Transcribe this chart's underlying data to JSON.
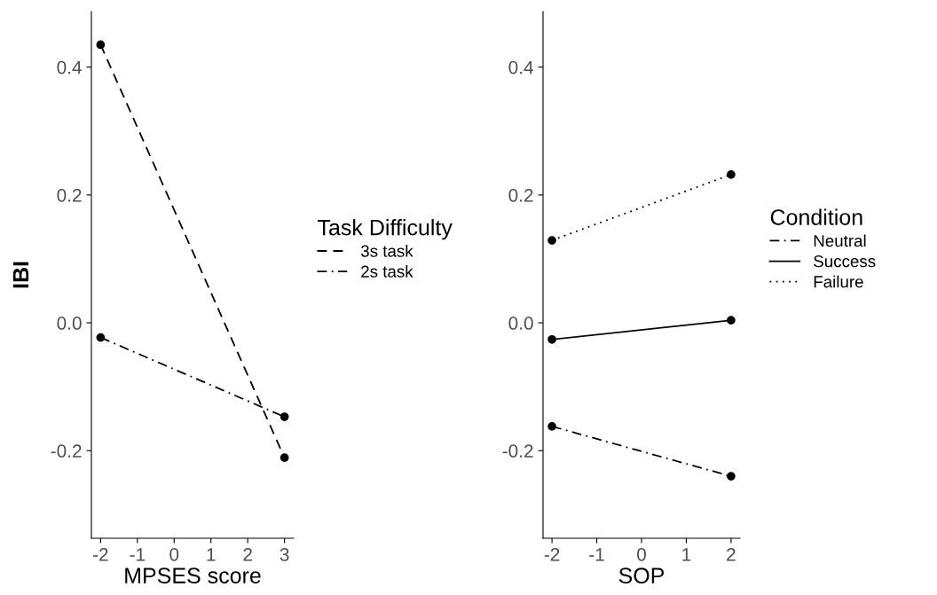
{
  "chart_data": [
    {
      "type": "line",
      "xlabel": "MPSES score",
      "ylabel": "IBI",
      "legend_title": "Task Difficulty",
      "legend": "right",
      "marker": "circle",
      "grid": false,
      "x": [
        -2,
        3
      ],
      "xlim": [
        -2.25,
        3.25
      ],
      "xticks": [
        -2,
        -1,
        0,
        1,
        2,
        3
      ],
      "ylim": [
        -0.337,
        0.487
      ],
      "yticks": [
        {
          "value": -0.2,
          "label": "-0.2"
        },
        {
          "value": 0.0,
          "label": "0.0"
        },
        {
          "value": 0.2,
          "label": "0.2"
        },
        {
          "value": 0.4,
          "label": "0.4"
        }
      ],
      "series": [
        {
          "name": "3s task",
          "color": "#000000",
          "line_style": "dashed",
          "values": [
            0.435,
            -0.211
          ]
        },
        {
          "name": "2s task",
          "color": "#000000",
          "line_style": "dashdot",
          "values": [
            -0.023,
            -0.147
          ]
        }
      ]
    },
    {
      "type": "line",
      "xlabel": "SOP",
      "legend_title": "Condition",
      "legend": "right",
      "marker": "circle",
      "grid": false,
      "x": [
        -2,
        2
      ],
      "xlim": [
        -2.2,
        2.2
      ],
      "xticks": [
        -2,
        -1,
        0,
        1,
        2
      ],
      "ylim": [
        -0.337,
        0.487
      ],
      "yticks": [
        {
          "value": -0.2,
          "label": "-0.2"
        },
        {
          "value": 0.0,
          "label": "0.0"
        },
        {
          "value": 0.2,
          "label": "0.2"
        },
        {
          "value": 0.4,
          "label": "0.4"
        }
      ],
      "series": [
        {
          "name": "Neutral",
          "color": "#000000",
          "line_style": "dashdot",
          "values": [
            -0.162,
            -0.24
          ]
        },
        {
          "name": "Success",
          "color": "#000000",
          "line_style": "solid",
          "values": [
            -0.026,
            0.004
          ]
        },
        {
          "name": "Failure",
          "color": "#000000",
          "line_style": "dotted",
          "values": [
            0.129,
            0.232
          ]
        }
      ]
    }
  ]
}
